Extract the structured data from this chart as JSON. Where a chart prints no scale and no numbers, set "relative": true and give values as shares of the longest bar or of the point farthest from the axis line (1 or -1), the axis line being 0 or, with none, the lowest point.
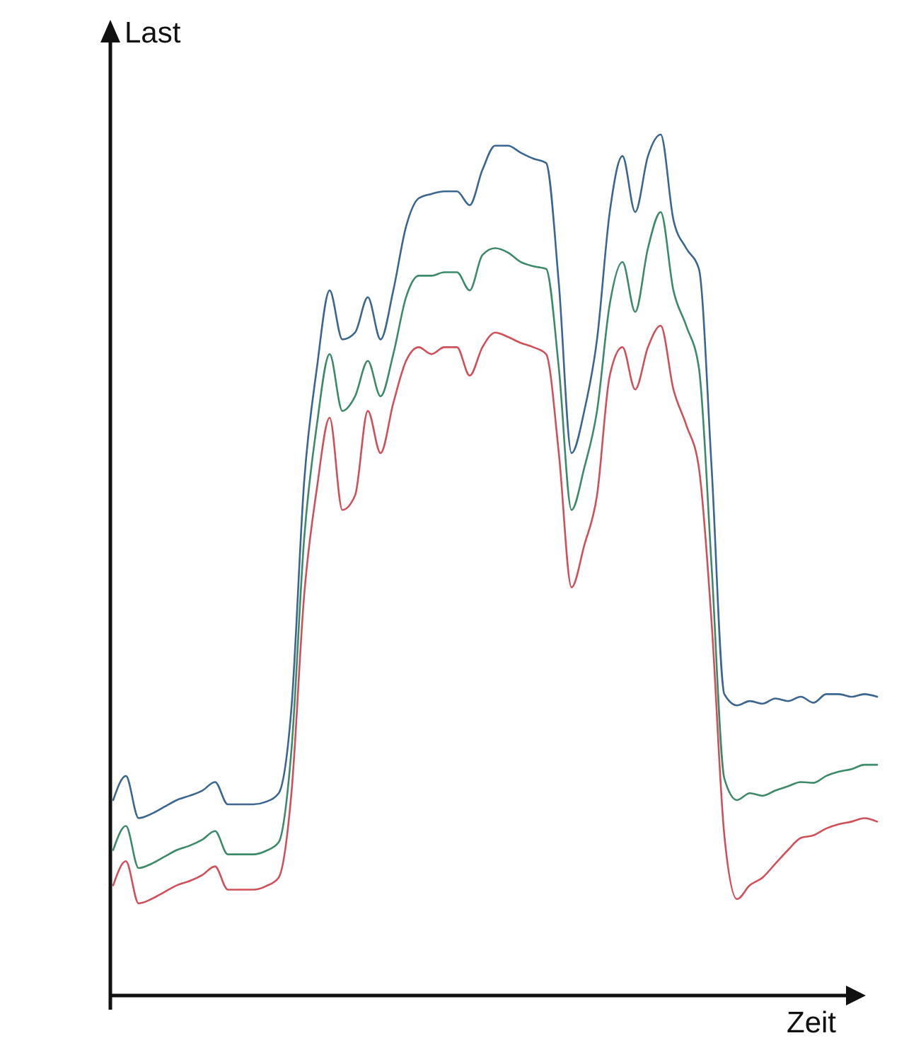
{
  "chart_data": {
    "type": "line",
    "relative": true,
    "xlabel": "Zeit",
    "ylabel": "Last",
    "categories": [
      null,
      null,
      null,
      null,
      null,
      null,
      null,
      null,
      null,
      null,
      null,
      null,
      null,
      null,
      null,
      null,
      null,
      null,
      null,
      null,
      null,
      null,
      null,
      null,
      null,
      null,
      null,
      null,
      null,
      null,
      null,
      null,
      null,
      null,
      null,
      null,
      null,
      null,
      null,
      null,
      null,
      null,
      null,
      null,
      null,
      null,
      null,
      null,
      null,
      null,
      null,
      null,
      null,
      null,
      null,
      null,
      null,
      null,
      null,
      null,
      null
    ],
    "series": [
      {
        "color": "#3a6690",
        "values": [
          0.227,
          0.255,
          0.206,
          0.211,
          0.219,
          0.227,
          0.232,
          0.238,
          0.248,
          0.222,
          0.222,
          0.222,
          0.225,
          0.235,
          0.334,
          0.597,
          0.729,
          0.819,
          0.762,
          0.77,
          0.811,
          0.762,
          0.819,
          0.893,
          0.926,
          0.931,
          0.934,
          0.934,
          0.918,
          0.959,
          0.987,
          0.987,
          0.979,
          0.972,
          0.967,
          0.827,
          0.63,
          0.679,
          0.762,
          0.91,
          0.975,
          0.91,
          0.975,
          1,
          0.901,
          0.868,
          0.844,
          0.613,
          0.35,
          0.337,
          0.342,
          0.339,
          0.345,
          0.342,
          0.347,
          0.34,
          0.35,
          0.35,
          0.347,
          0.35,
          0.347
        ]
      },
      {
        "color": "#3d8a6a",
        "values": [
          0.169,
          0.197,
          0.148,
          0.153,
          0.161,
          0.169,
          0.174,
          0.181,
          0.191,
          0.164,
          0.164,
          0.164,
          0.168,
          0.178,
          0.285,
          0.531,
          0.663,
          0.745,
          0.679,
          0.696,
          0.737,
          0.696,
          0.745,
          0.811,
          0.836,
          0.836,
          0.84,
          0.84,
          0.819,
          0.86,
          0.868,
          0.863,
          0.852,
          0.847,
          0.844,
          0.729,
          0.564,
          0.613,
          0.679,
          0.803,
          0.852,
          0.794,
          0.868,
          0.91,
          0.819,
          0.778,
          0.729,
          0.498,
          0.252,
          0.227,
          0.235,
          0.232,
          0.238,
          0.243,
          0.248,
          0.247,
          0.255,
          0.26,
          0.263,
          0.268,
          0.268
        ]
      },
      {
        "color": "#d0505a",
        "values": [
          0.128,
          0.156,
          0.107,
          0.112,
          0.12,
          0.128,
          0.133,
          0.14,
          0.15,
          0.123,
          0.123,
          0.123,
          0.127,
          0.137,
          0.235,
          0.465,
          0.589,
          0.671,
          0.564,
          0.581,
          0.679,
          0.63,
          0.688,
          0.737,
          0.753,
          0.745,
          0.753,
          0.753,
          0.72,
          0.753,
          0.77,
          0.765,
          0.758,
          0.753,
          0.745,
          0.63,
          0.474,
          0.523,
          0.581,
          0.72,
          0.753,
          0.704,
          0.753,
          0.778,
          0.704,
          0.663,
          0.613,
          0.433,
          0.186,
          0.112,
          0.128,
          0.137,
          0.153,
          0.169,
          0.183,
          0.186,
          0.194,
          0.199,
          0.202,
          0.206,
          0.202
        ]
      }
    ]
  }
}
